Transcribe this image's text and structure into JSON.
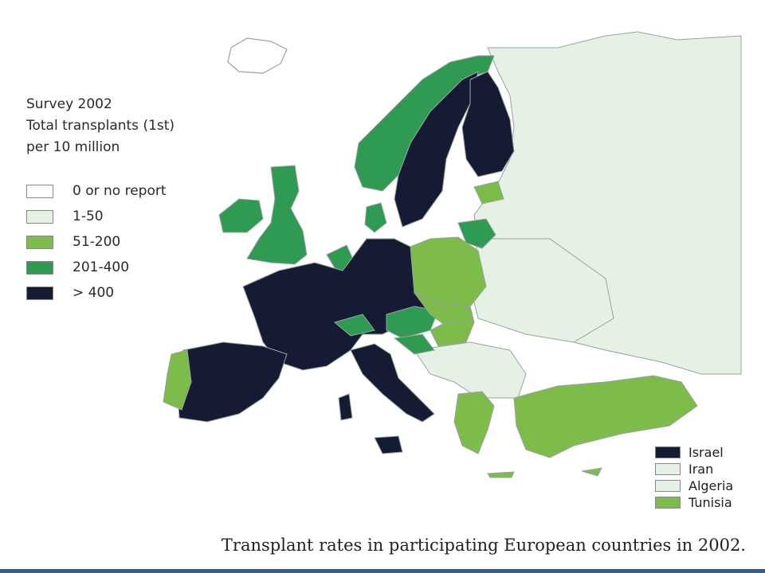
{
  "colors": {
    "none": "#ffffff",
    "low": "#e6f1e6",
    "mid": "#7dbb4a",
    "high": "#2f9b52",
    "top": "#141b33",
    "sea": "#ffffff",
    "border": "#9aa3a0",
    "accent": "#2f5f9a"
  },
  "legend": {
    "title_lines": [
      "Survey 2002",
      "Total transplants (1st)",
      "per 10 million"
    ],
    "items": [
      {
        "label": "0 or no report",
        "key": "none"
      },
      {
        "label": "1-50",
        "key": "low"
      },
      {
        "label": "51-200",
        "key": "mid"
      },
      {
        "label": "201-400",
        "key": "high"
      },
      {
        "label": "> 400",
        "key": "top"
      }
    ]
  },
  "other_countries": [
    {
      "label": "Israel",
      "key": "top"
    },
    {
      "label": "Iran",
      "key": "low"
    },
    {
      "label": "Algeria",
      "key": "low"
    },
    {
      "label": "Tunisia",
      "key": "mid"
    }
  ],
  "caption": "Transplant rates in participating European countries in 2002."
}
